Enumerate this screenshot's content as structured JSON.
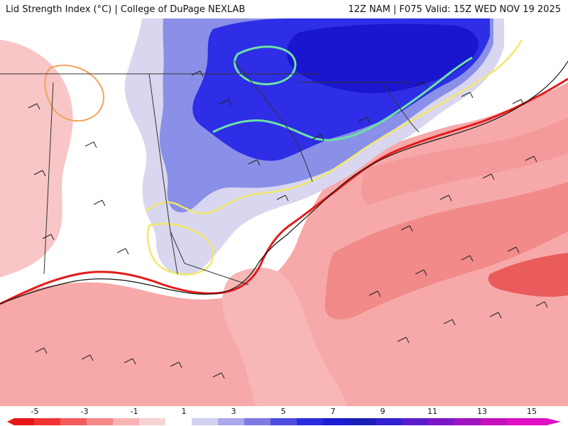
{
  "header": {
    "left_title": "Lid Strength Index (°C) | College of DuPage NEXLAB",
    "right_title": "12Z NAM | F075 Valid: 15Z WED NOV 19 2025"
  },
  "colors": {
    "strong_negative": "#ea3b3b",
    "negative": "#f28a8a",
    "slight_negative": "#f7b7b7",
    "pale_positive": "#d9d7ef",
    "positive": "#8a90e7",
    "strong_positive": "#2e2ee6",
    "very_strong_positive": "#1a16cf",
    "contour_neg": "#f2a35c",
    "contour_red": "#e41a1a",
    "contour_yellow": "#f1e86a",
    "contour_green": "#6de2a6"
  },
  "legend": {
    "tick_labels": [
      "-5",
      "-3",
      "-1",
      "1",
      "3",
      "5",
      "7",
      "9",
      "11",
      "13",
      "15"
    ],
    "swatches": [
      "#e61717",
      "#f03333",
      "#f45b5b",
      "#f78787",
      "#f9b3b3",
      "#f8d3d3",
      "#ffffff",
      "#d2d1f0",
      "#aaa7ea",
      "#7f7ae2",
      "#4d4ade",
      "#2b2bde",
      "#1b1bd2",
      "#1a1fb8",
      "#3020d2",
      "#5a1ccb",
      "#7b17c7",
      "#9f14c1",
      "#c510bc",
      "#de10c5"
    ]
  }
}
